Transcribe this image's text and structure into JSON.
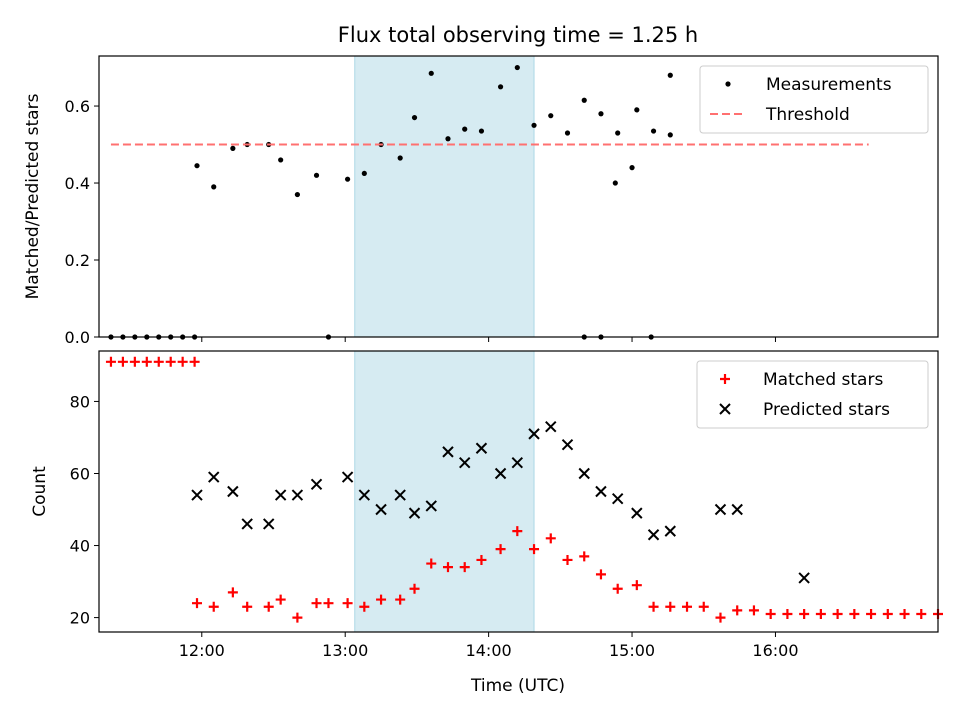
{
  "title": "Flux total observing time = 1.25 h",
  "x_ticks": [
    "12:00",
    "13:00",
    "14:00",
    "15:00",
    "16:00"
  ],
  "xlabel": "Time (UTC)",
  "chart_data": [
    {
      "type": "scatter",
      "title": "Flux total observing time = 1.25 h",
      "ylabel": "Matched/Predicted stars",
      "xlim": [
        "11:17",
        "17:08"
      ],
      "ylim": [
        0,
        0.73
      ],
      "y_ticks": [
        "0.0",
        "0.2",
        "0.4",
        "0.6"
      ],
      "shaded_span": [
        "13:04",
        "14:19"
      ],
      "shade_color": "#add8e6",
      "legend": {
        "position": "upper right",
        "entries": [
          "Measurements",
          "Threshold"
        ]
      },
      "series": [
        {
          "name": "Measurements",
          "marker": "dot",
          "color": "#000000",
          "points": [
            [
              "11:22",
              0
            ],
            [
              "11:27",
              0
            ],
            [
              "11:32",
              0
            ],
            [
              "11:37",
              0
            ],
            [
              "11:42",
              0
            ],
            [
              "11:47",
              0
            ],
            [
              "11:52",
              0
            ],
            [
              "11:57",
              0
            ],
            [
              "11:58",
              0.445
            ],
            [
              "12:05",
              0.39
            ],
            [
              "12:13",
              0.49
            ],
            [
              "12:19",
              0.5
            ],
            [
              "12:28",
              0.5
            ],
            [
              "12:33",
              0.46
            ],
            [
              "12:40",
              0.37
            ],
            [
              "12:48",
              0.42
            ],
            [
              "12:53",
              0
            ],
            [
              "13:01",
              0.41
            ],
            [
              "13:08",
              0.425
            ],
            [
              "13:15",
              0.5
            ],
            [
              "13:23",
              0.465
            ],
            [
              "13:29",
              0.57
            ],
            [
              "13:36",
              0.685
            ],
            [
              "13:43",
              0.515
            ],
            [
              "13:50",
              0.54
            ],
            [
              "13:57",
              0.535
            ],
            [
              "14:05",
              0.65
            ],
            [
              "14:12",
              0.7
            ],
            [
              "14:19",
              0.55
            ],
            [
              "14:26",
              0.575
            ],
            [
              "14:33",
              0.53
            ],
            [
              "14:40",
              0.615
            ],
            [
              "14:47",
              0.58
            ],
            [
              "14:54",
              0.53
            ],
            [
              "15:02",
              0.59
            ],
            [
              "15:09",
              0.535
            ],
            [
              "15:16",
              0.525
            ],
            [
              "14:40",
              0
            ],
            [
              "14:47",
              0
            ],
            [
              "14:53",
              0.4
            ],
            [
              "15:00",
              0.44
            ],
            [
              "15:08",
              0
            ],
            [
              "15:16",
              0.68
            ]
          ]
        },
        {
          "name": "Threshold",
          "style": "dashed",
          "color": "#ff7070",
          "y": 0.5,
          "x_range": [
            "11:22",
            "16:39"
          ]
        }
      ]
    },
    {
      "type": "scatter",
      "ylabel": "Count",
      "xlabel": "Time (UTC)",
      "xlim": [
        "11:17",
        "17:08"
      ],
      "ylim": [
        16,
        94
      ],
      "y_ticks": [
        "20",
        "40",
        "60",
        "80"
      ],
      "shaded_span": [
        "13:04",
        "14:19"
      ],
      "shade_color": "#add8e6",
      "legend": {
        "position": "upper right",
        "entries": [
          "Matched stars",
          "Predicted stars"
        ]
      },
      "series": [
        {
          "name": "Matched stars",
          "marker": "plus",
          "color": "#ff0000",
          "points": [
            [
              "11:22",
              91
            ],
            [
              "11:27",
              91
            ],
            [
              "11:32",
              91
            ],
            [
              "11:37",
              91
            ],
            [
              "11:42",
              91
            ],
            [
              "11:47",
              91
            ],
            [
              "11:52",
              91
            ],
            [
              "11:57",
              91
            ],
            [
              "11:58",
              24
            ],
            [
              "12:05",
              23
            ],
            [
              "12:13",
              27
            ],
            [
              "12:19",
              23
            ],
            [
              "12:28",
              23
            ],
            [
              "12:33",
              25
            ],
            [
              "12:40",
              20
            ],
            [
              "12:48",
              24
            ],
            [
              "12:53",
              24
            ],
            [
              "13:01",
              24
            ],
            [
              "13:08",
              23
            ],
            [
              "13:15",
              25
            ],
            [
              "13:23",
              25
            ],
            [
              "13:29",
              28
            ],
            [
              "13:36",
              35
            ],
            [
              "13:43",
              34
            ],
            [
              "13:50",
              34
            ],
            [
              "13:57",
              36
            ],
            [
              "14:05",
              39
            ],
            [
              "14:12",
              44
            ],
            [
              "14:19",
              39
            ],
            [
              "14:26",
              42
            ],
            [
              "14:33",
              36
            ],
            [
              "14:40",
              37
            ],
            [
              "14:47",
              32
            ],
            [
              "14:54",
              28
            ],
            [
              "15:02",
              29
            ],
            [
              "15:09",
              23
            ],
            [
              "15:16",
              23
            ],
            [
              "15:23",
              23
            ],
            [
              "15:30",
              23
            ],
            [
              "15:37",
              20
            ],
            [
              "15:44",
              22
            ],
            [
              "15:51",
              22
            ],
            [
              "15:58",
              21
            ],
            [
              "16:05",
              21
            ],
            [
              "16:12",
              21
            ],
            [
              "16:19",
              21
            ],
            [
              "16:26",
              21
            ],
            [
              "16:33",
              21
            ],
            [
              "16:40",
              21
            ],
            [
              "16:47",
              21
            ],
            [
              "16:54",
              21
            ],
            [
              "17:01",
              21
            ],
            [
              "17:08",
              21
            ]
          ]
        },
        {
          "name": "Predicted stars",
          "marker": "x",
          "color": "#000000",
          "points": [
            [
              "11:58",
              54
            ],
            [
              "12:05",
              59
            ],
            [
              "12:13",
              55
            ],
            [
              "12:19",
              46
            ],
            [
              "12:28",
              46
            ],
            [
              "12:33",
              54
            ],
            [
              "12:40",
              54
            ],
            [
              "12:48",
              57
            ],
            [
              "13:01",
              59
            ],
            [
              "13:08",
              54
            ],
            [
              "13:15",
              50
            ],
            [
              "13:23",
              54
            ],
            [
              "13:29",
              49
            ],
            [
              "13:36",
              51
            ],
            [
              "13:43",
              66
            ],
            [
              "13:50",
              63
            ],
            [
              "13:57",
              67
            ],
            [
              "14:05",
              60
            ],
            [
              "14:12",
              63
            ],
            [
              "14:19",
              71
            ],
            [
              "14:26",
              73
            ],
            [
              "14:33",
              68
            ],
            [
              "14:40",
              60
            ],
            [
              "14:47",
              55
            ],
            [
              "14:54",
              53
            ],
            [
              "15:02",
              49
            ],
            [
              "15:09",
              43
            ],
            [
              "15:16",
              44
            ],
            [
              "15:37",
              50
            ],
            [
              "15:44",
              50
            ],
            [
              "16:12",
              31
            ]
          ]
        }
      ]
    }
  ]
}
